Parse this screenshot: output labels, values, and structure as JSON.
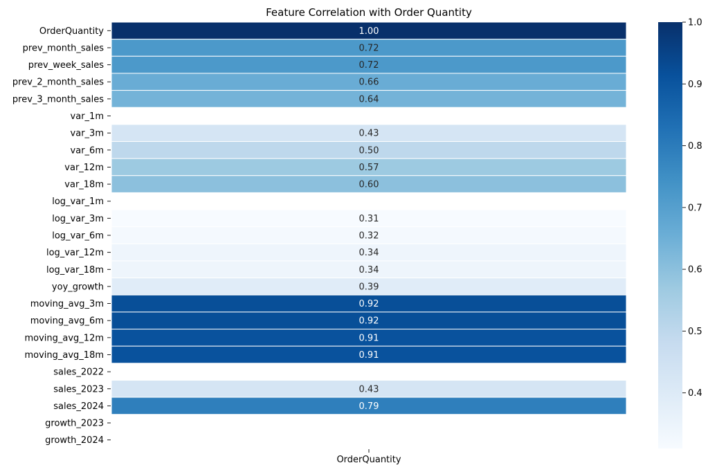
{
  "chart_data": {
    "type": "heatmap",
    "title": "Feature Correlation with Order Quantity",
    "xlabel": "",
    "ylabel": "",
    "columns": [
      "OrderQuantity"
    ],
    "rows": [
      {
        "label": "OrderQuantity",
        "value": 1.0,
        "text": "1.00"
      },
      {
        "label": "prev_month_sales",
        "value": 0.72,
        "text": "0.72"
      },
      {
        "label": "prev_week_sales",
        "value": 0.72,
        "text": "0.72"
      },
      {
        "label": "prev_2_month_sales",
        "value": 0.66,
        "text": "0.66"
      },
      {
        "label": "prev_3_month_sales",
        "value": 0.64,
        "text": "0.64"
      },
      {
        "label": "var_1m",
        "value": null,
        "text": ""
      },
      {
        "label": "var_3m",
        "value": 0.43,
        "text": "0.43"
      },
      {
        "label": "var_6m",
        "value": 0.5,
        "text": "0.50"
      },
      {
        "label": "var_12m",
        "value": 0.57,
        "text": "0.57"
      },
      {
        "label": "var_18m",
        "value": 0.6,
        "text": "0.60"
      },
      {
        "label": "log_var_1m",
        "value": null,
        "text": ""
      },
      {
        "label": "log_var_3m",
        "value": 0.31,
        "text": "0.31"
      },
      {
        "label": "log_var_6m",
        "value": 0.32,
        "text": "0.32"
      },
      {
        "label": "log_var_12m",
        "value": 0.34,
        "text": "0.34"
      },
      {
        "label": "log_var_18m",
        "value": 0.34,
        "text": "0.34"
      },
      {
        "label": "yoy_growth",
        "value": 0.39,
        "text": "0.39"
      },
      {
        "label": "moving_avg_3m",
        "value": 0.92,
        "text": "0.92"
      },
      {
        "label": "moving_avg_6m",
        "value": 0.92,
        "text": "0.92"
      },
      {
        "label": "moving_avg_12m",
        "value": 0.91,
        "text": "0.91"
      },
      {
        "label": "moving_avg_18m",
        "value": 0.91,
        "text": "0.91"
      },
      {
        "label": "sales_2022",
        "value": null,
        "text": ""
      },
      {
        "label": "sales_2023",
        "value": 0.43,
        "text": "0.43"
      },
      {
        "label": "sales_2024",
        "value": 0.79,
        "text": "0.79"
      },
      {
        "label": "growth_2023",
        "value": null,
        "text": ""
      },
      {
        "label": "growth_2024",
        "value": null,
        "text": ""
      }
    ],
    "colorbar": {
      "cmap": "Blues",
      "range": [
        0.31,
        1.0
      ],
      "ticks": [
        {
          "value": 0.4,
          "label": "0.4"
        },
        {
          "value": 0.5,
          "label": "0.5"
        },
        {
          "value": 0.6,
          "label": "0.6"
        },
        {
          "value": 0.7,
          "label": "0.7"
        },
        {
          "value": 0.8,
          "label": "0.8"
        },
        {
          "value": 0.9,
          "label": "0.9"
        },
        {
          "value": 1.0,
          "label": "1.0"
        }
      ]
    },
    "grid": false,
    "legend": "right"
  }
}
